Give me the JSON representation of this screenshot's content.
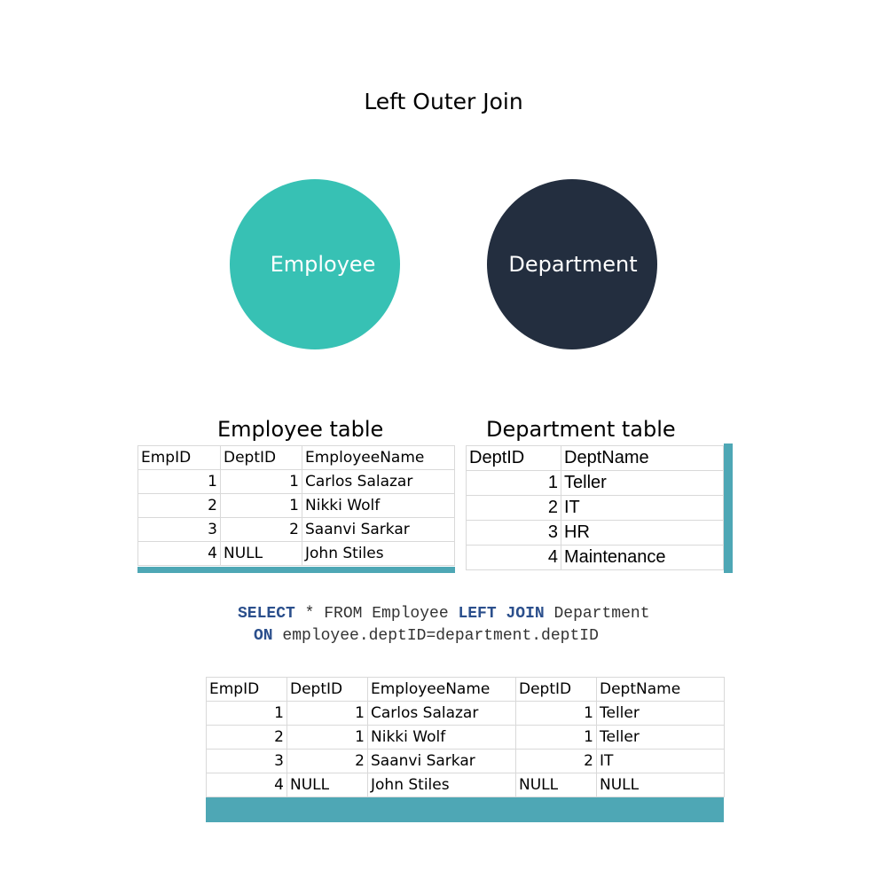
{
  "title": "Left Outer Join",
  "venn": {
    "left_label": "Employee",
    "right_label": "Department",
    "colors": {
      "left": "#37c1b4",
      "right": "#232e3f",
      "outline": "#ffffff"
    }
  },
  "employee_table": {
    "caption": "Employee table",
    "headers": [
      "EmpID",
      "DeptID",
      "EmployeeName"
    ],
    "rows": [
      [
        "1",
        "1",
        "Carlos Salazar"
      ],
      [
        "2",
        "1",
        "Nikki Wolf"
      ],
      [
        "3",
        "2",
        "Saanvi Sarkar"
      ],
      [
        "4",
        "NULL",
        "John Stiles"
      ]
    ]
  },
  "department_table": {
    "caption": "Department table",
    "headers": [
      "DeptID",
      "DeptName"
    ],
    "rows": [
      [
        "1",
        "Teller"
      ],
      [
        "2",
        "IT"
      ],
      [
        "3",
        "HR"
      ],
      [
        "4",
        "Maintenance"
      ]
    ]
  },
  "sql": {
    "line1": {
      "kw1": "SELECT",
      "text1": " * FROM Employee ",
      "kw2": "LEFT JOIN",
      "text2": " Department"
    },
    "line2": {
      "kw1": "ON",
      "text1": " employee.deptID=department.deptID"
    }
  },
  "result_table": {
    "headers": [
      "EmpID",
      "DeptID",
      "EmployeeName",
      "DeptID",
      "DeptName"
    ],
    "rows": [
      [
        "1",
        "1",
        "Carlos Salazar",
        "1",
        "Teller"
      ],
      [
        "2",
        "1",
        "Nikki Wolf",
        "1",
        "Teller"
      ],
      [
        "3",
        "2",
        "Saanvi Sarkar",
        "2",
        "IT"
      ],
      [
        "4",
        "NULL",
        "John Stiles",
        "NULL",
        "NULL"
      ]
    ]
  },
  "accent_color": "#4ea7b5"
}
